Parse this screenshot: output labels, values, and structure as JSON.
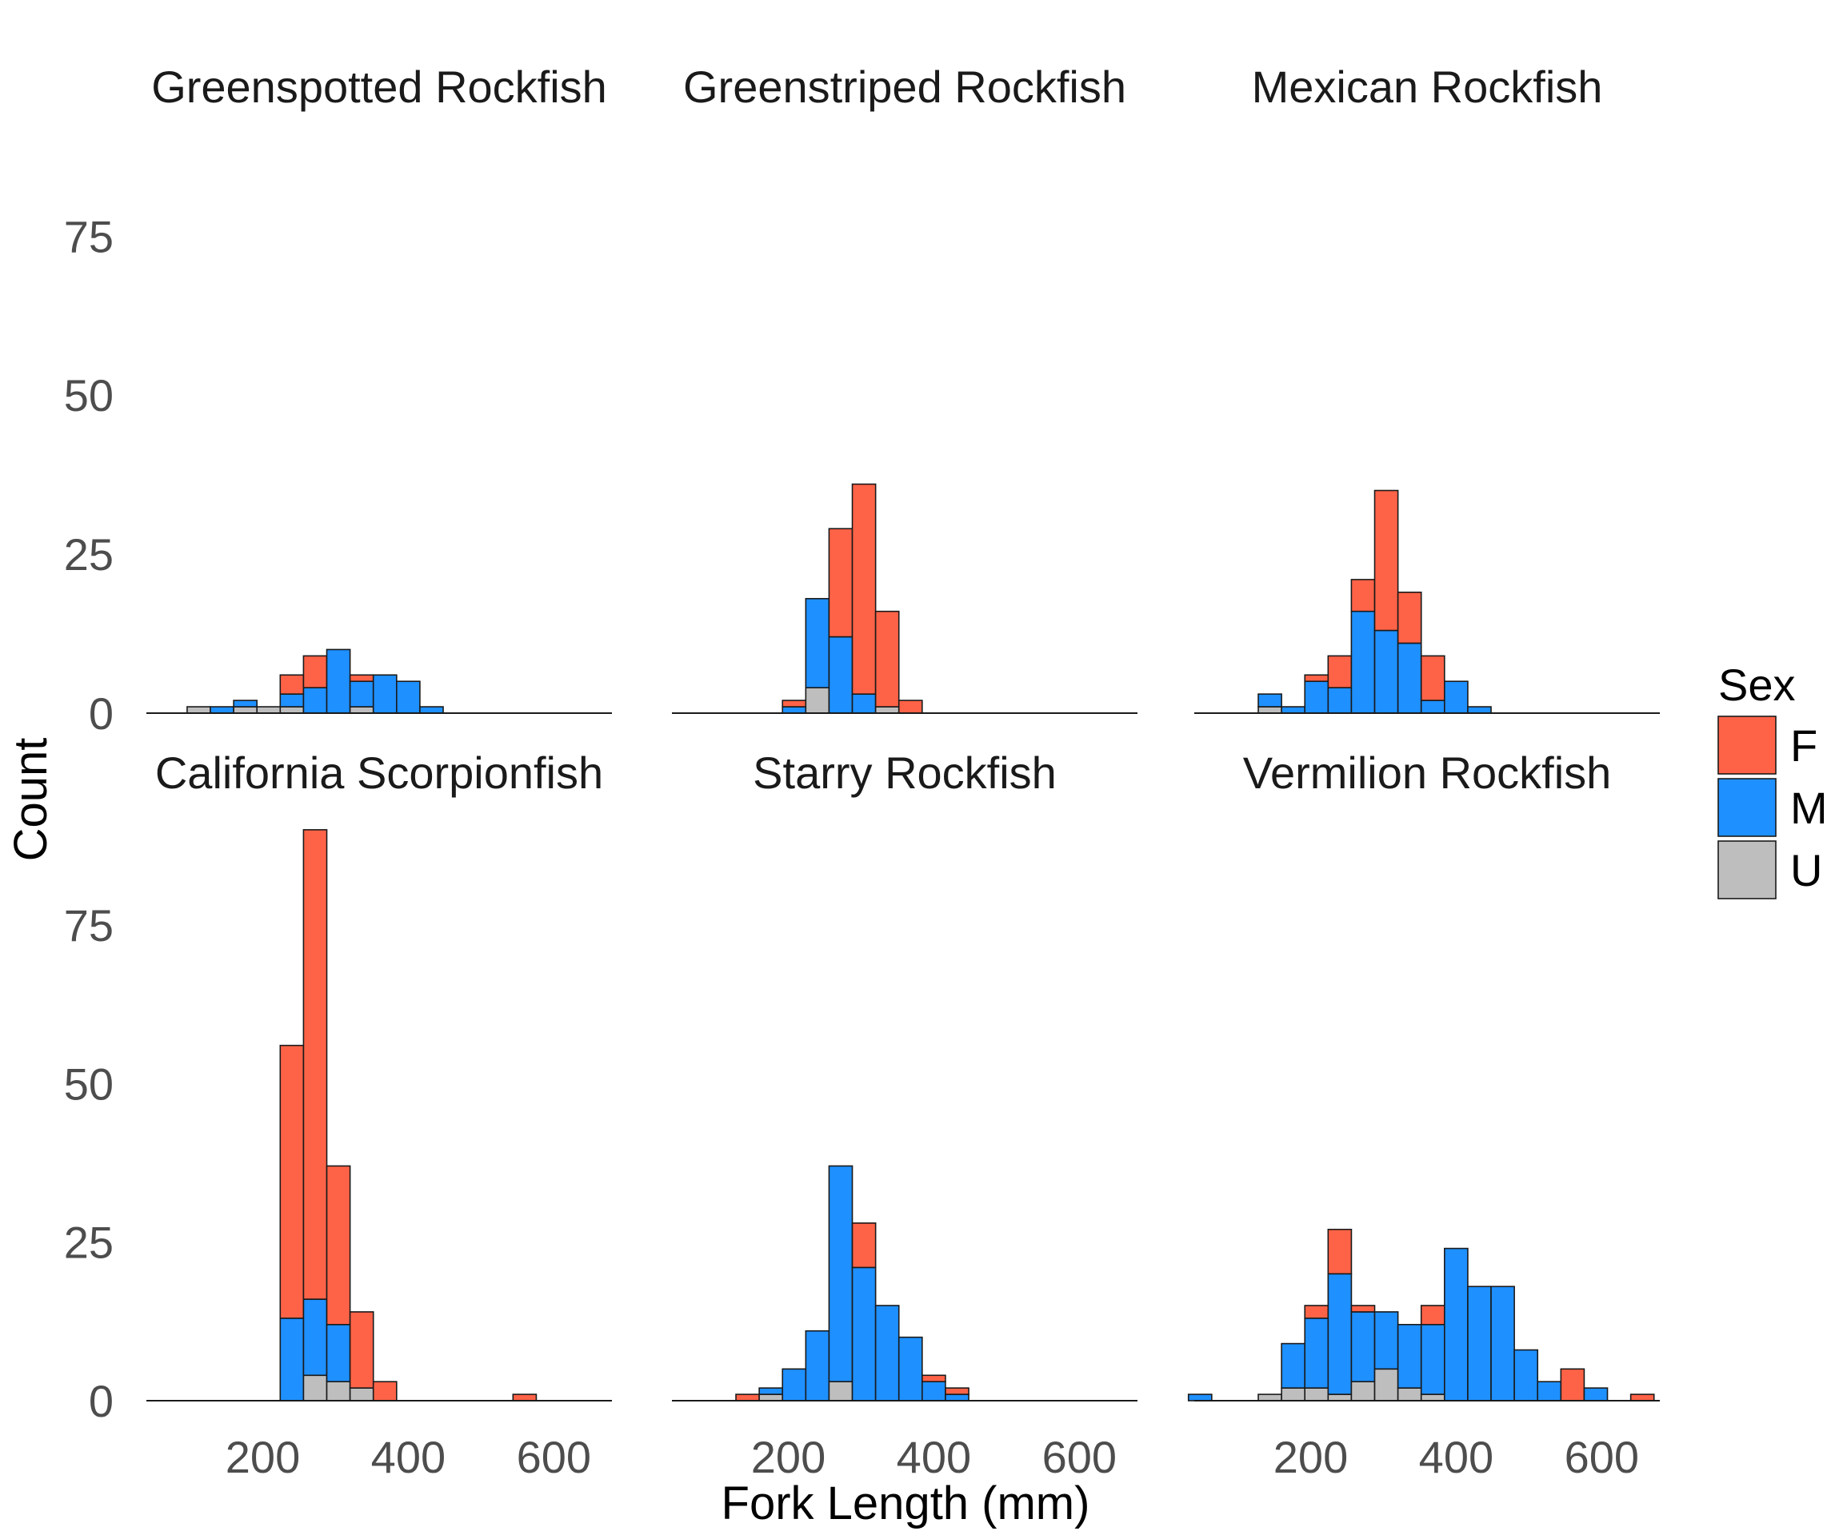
{
  "chart_data": {
    "type": "bar",
    "stacked": true,
    "xlabel": "Fork Length (mm)",
    "ylabel": "Count",
    "xlim": [
      40,
      680
    ],
    "ylim": [
      0,
      92
    ],
    "x_ticks": [
      200,
      400,
      600
    ],
    "y_ticks": [
      0,
      25,
      50,
      75
    ],
    "bin_width": 32,
    "grid": false,
    "legend": {
      "title": "Sex",
      "position": "right",
      "entries": [
        {
          "key": "F",
          "label": "F",
          "color": "#ff6347"
        },
        {
          "key": "M",
          "label": "M",
          "color": "#1e90ff"
        },
        {
          "key": "U",
          "label": "U",
          "color": "#bebebe"
        }
      ]
    },
    "panels": [
      {
        "title": "Greenspotted Rockfish",
        "bins": [
          {
            "x": 112,
            "U": 1,
            "M": 0,
            "F": 0
          },
          {
            "x": 144,
            "U": 0,
            "M": 1,
            "F": 0
          },
          {
            "x": 176,
            "U": 1,
            "M": 1,
            "F": 0
          },
          {
            "x": 208,
            "U": 1,
            "M": 0,
            "F": 0
          },
          {
            "x": 240,
            "U": 1,
            "M": 2,
            "F": 3
          },
          {
            "x": 272,
            "U": 0,
            "M": 4,
            "F": 5
          },
          {
            "x": 304,
            "U": 0,
            "M": 10,
            "F": 0
          },
          {
            "x": 336,
            "U": 1,
            "M": 4,
            "F": 1
          },
          {
            "x": 368,
            "U": 0,
            "M": 6,
            "F": 0
          },
          {
            "x": 400,
            "U": 0,
            "M": 5,
            "F": 0
          },
          {
            "x": 432,
            "U": 0,
            "M": 1,
            "F": 0
          }
        ]
      },
      {
        "title": "Greenstriped Rockfish",
        "bins": [
          {
            "x": 208,
            "U": 0,
            "M": 1,
            "F": 1
          },
          {
            "x": 240,
            "U": 4,
            "M": 14,
            "F": 0
          },
          {
            "x": 272,
            "U": 0,
            "M": 12,
            "F": 17
          },
          {
            "x": 304,
            "U": 0,
            "M": 3,
            "F": 33
          },
          {
            "x": 336,
            "U": 1,
            "M": 0,
            "F": 15
          },
          {
            "x": 368,
            "U": 0,
            "M": 0,
            "F": 2
          }
        ]
      },
      {
        "title": "Mexican Rockfish",
        "bins": [
          {
            "x": 144,
            "U": 1,
            "M": 2,
            "F": 0
          },
          {
            "x": 176,
            "U": 0,
            "M": 1,
            "F": 0
          },
          {
            "x": 208,
            "U": 0,
            "M": 5,
            "F": 1
          },
          {
            "x": 240,
            "U": 0,
            "M": 4,
            "F": 5
          },
          {
            "x": 272,
            "U": 0,
            "M": 16,
            "F": 5
          },
          {
            "x": 304,
            "U": 0,
            "M": 13,
            "F": 22
          },
          {
            "x": 336,
            "U": 0,
            "M": 11,
            "F": 8
          },
          {
            "x": 368,
            "U": 0,
            "M": 2,
            "F": 7
          },
          {
            "x": 400,
            "U": 0,
            "M": 5,
            "F": 0
          },
          {
            "x": 432,
            "U": 0,
            "M": 1,
            "F": 0
          }
        ]
      },
      {
        "title": "California Scorpionfish",
        "bins": [
          {
            "x": 240,
            "U": 0,
            "M": 13,
            "F": 43
          },
          {
            "x": 272,
            "U": 4,
            "M": 12,
            "F": 74
          },
          {
            "x": 304,
            "U": 3,
            "M": 9,
            "F": 25
          },
          {
            "x": 336,
            "U": 2,
            "M": 0,
            "F": 12
          },
          {
            "x": 368,
            "U": 0,
            "M": 0,
            "F": 3
          },
          {
            "x": 560,
            "U": 0,
            "M": 0,
            "F": 1
          }
        ]
      },
      {
        "title": "Starry Rockfish",
        "bins": [
          {
            "x": 144,
            "U": 0,
            "M": 0,
            "F": 1
          },
          {
            "x": 176,
            "U": 1,
            "M": 1,
            "F": 0
          },
          {
            "x": 208,
            "U": 0,
            "M": 5,
            "F": 0
          },
          {
            "x": 240,
            "U": 0,
            "M": 11,
            "F": 0
          },
          {
            "x": 272,
            "U": 3,
            "M": 34,
            "F": 0
          },
          {
            "x": 304,
            "U": 0,
            "M": 21,
            "F": 7
          },
          {
            "x": 336,
            "U": 0,
            "M": 15,
            "F": 0
          },
          {
            "x": 368,
            "U": 0,
            "M": 10,
            "F": 0
          },
          {
            "x": 400,
            "U": 0,
            "M": 3,
            "F": 1
          },
          {
            "x": 432,
            "U": 0,
            "M": 1,
            "F": 1
          }
        ]
      },
      {
        "title": "Vermilion Rockfish",
        "bins": [
          {
            "x": 48,
            "U": 0,
            "M": 1,
            "F": 0
          },
          {
            "x": 144,
            "U": 1,
            "M": 0,
            "F": 0
          },
          {
            "x": 176,
            "U": 2,
            "M": 7,
            "F": 0
          },
          {
            "x": 208,
            "U": 2,
            "M": 11,
            "F": 2
          },
          {
            "x": 240,
            "U": 1,
            "M": 19,
            "F": 7
          },
          {
            "x": 272,
            "U": 3,
            "M": 11,
            "F": 1
          },
          {
            "x": 304,
            "U": 5,
            "M": 9,
            "F": 0
          },
          {
            "x": 336,
            "U": 2,
            "M": 10,
            "F": 0
          },
          {
            "x": 368,
            "U": 1,
            "M": 11,
            "F": 3
          },
          {
            "x": 400,
            "U": 0,
            "M": 24,
            "F": 0
          },
          {
            "x": 432,
            "U": 0,
            "M": 18,
            "F": 0
          },
          {
            "x": 464,
            "U": 0,
            "M": 18,
            "F": 0
          },
          {
            "x": 496,
            "U": 0,
            "M": 8,
            "F": 0
          },
          {
            "x": 528,
            "U": 0,
            "M": 3,
            "F": 0
          },
          {
            "x": 560,
            "U": 0,
            "M": 0,
            "F": 5
          },
          {
            "x": 592,
            "U": 0,
            "M": 2,
            "F": 0
          },
          {
            "x": 656,
            "U": 0,
            "M": 0,
            "F": 1
          }
        ]
      }
    ]
  }
}
